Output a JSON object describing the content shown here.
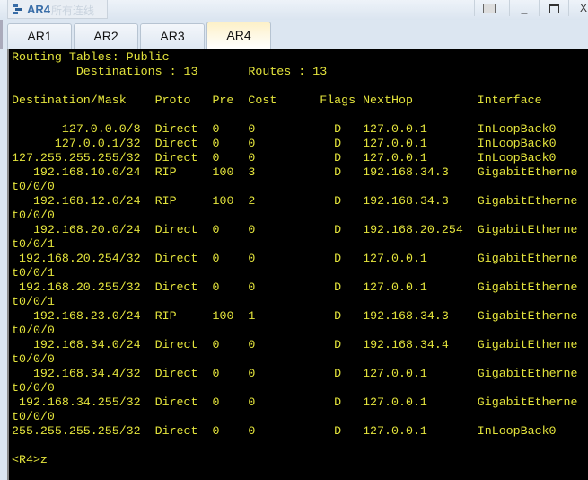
{
  "window": {
    "title": "AR4",
    "ghost_text": "所有连线",
    "controls": [
      "restore",
      "minimize",
      "maximize",
      "close"
    ],
    "close_label": "X"
  },
  "tabs": [
    {
      "label": "AR1"
    },
    {
      "label": "AR2"
    },
    {
      "label": "AR3"
    },
    {
      "label": "AR4",
      "active": true
    }
  ],
  "terminal": {
    "text_color": "#e4e43c",
    "heading": "Routing Tables: Public",
    "destinations_label": "Destinations",
    "destinations": "13",
    "routes_label": "Routes",
    "routes": "13",
    "columns": [
      "Destination/Mask",
      "Proto",
      "Pre",
      "Cost",
      "Flags",
      "NextHop",
      "Interface"
    ],
    "rows": [
      {
        "dest": "127.0.0.0/8",
        "proto": "Direct",
        "pre": "0",
        "cost": "0",
        "flags": "D",
        "nexthop": "127.0.0.1",
        "iface": "InLoopBack0"
      },
      {
        "dest": "127.0.0.1/32",
        "proto": "Direct",
        "pre": "0",
        "cost": "0",
        "flags": "D",
        "nexthop": "127.0.0.1",
        "iface": "InLoopBack0"
      },
      {
        "dest": "127.255.255.255/32",
        "proto": "Direct",
        "pre": "0",
        "cost": "0",
        "flags": "D",
        "nexthop": "127.0.0.1",
        "iface": "InLoopBack0"
      },
      {
        "dest": "192.168.10.0/24",
        "proto": "RIP",
        "pre": "100",
        "cost": "3",
        "flags": "D",
        "nexthop": "192.168.34.3",
        "iface": "GigabitEthernet0/0/0"
      },
      {
        "dest": "192.168.12.0/24",
        "proto": "RIP",
        "pre": "100",
        "cost": "2",
        "flags": "D",
        "nexthop": "192.168.34.3",
        "iface": "GigabitEthernet0/0/0"
      },
      {
        "dest": "192.168.20.0/24",
        "proto": "Direct",
        "pre": "0",
        "cost": "0",
        "flags": "D",
        "nexthop": "192.168.20.254",
        "iface": "GigabitEthernet0/0/1"
      },
      {
        "dest": "192.168.20.254/32",
        "proto": "Direct",
        "pre": "0",
        "cost": "0",
        "flags": "D",
        "nexthop": "127.0.0.1",
        "iface": "GigabitEthernet0/0/1"
      },
      {
        "dest": "192.168.20.255/32",
        "proto": "Direct",
        "pre": "0",
        "cost": "0",
        "flags": "D",
        "nexthop": "127.0.0.1",
        "iface": "GigabitEthernet0/0/1"
      },
      {
        "dest": "192.168.23.0/24",
        "proto": "RIP",
        "pre": "100",
        "cost": "1",
        "flags": "D",
        "nexthop": "192.168.34.3",
        "iface": "GigabitEthernet0/0/0"
      },
      {
        "dest": "192.168.34.0/24",
        "proto": "Direct",
        "pre": "0",
        "cost": "0",
        "flags": "D",
        "nexthop": "192.168.34.4",
        "iface": "GigabitEthernet0/0/0"
      },
      {
        "dest": "192.168.34.4/32",
        "proto": "Direct",
        "pre": "0",
        "cost": "0",
        "flags": "D",
        "nexthop": "127.0.0.1",
        "iface": "GigabitEthernet0/0/0"
      },
      {
        "dest": "192.168.34.255/32",
        "proto": "Direct",
        "pre": "0",
        "cost": "0",
        "flags": "D",
        "nexthop": "127.0.0.1",
        "iface": "GigabitEthernet0/0/0"
      },
      {
        "dest": "255.255.255.255/32",
        "proto": "Direct",
        "pre": "0",
        "cost": "0",
        "flags": "D",
        "nexthop": "127.0.0.1",
        "iface": "InLoopBack0"
      }
    ],
    "prompt": "<R4>z"
  }
}
